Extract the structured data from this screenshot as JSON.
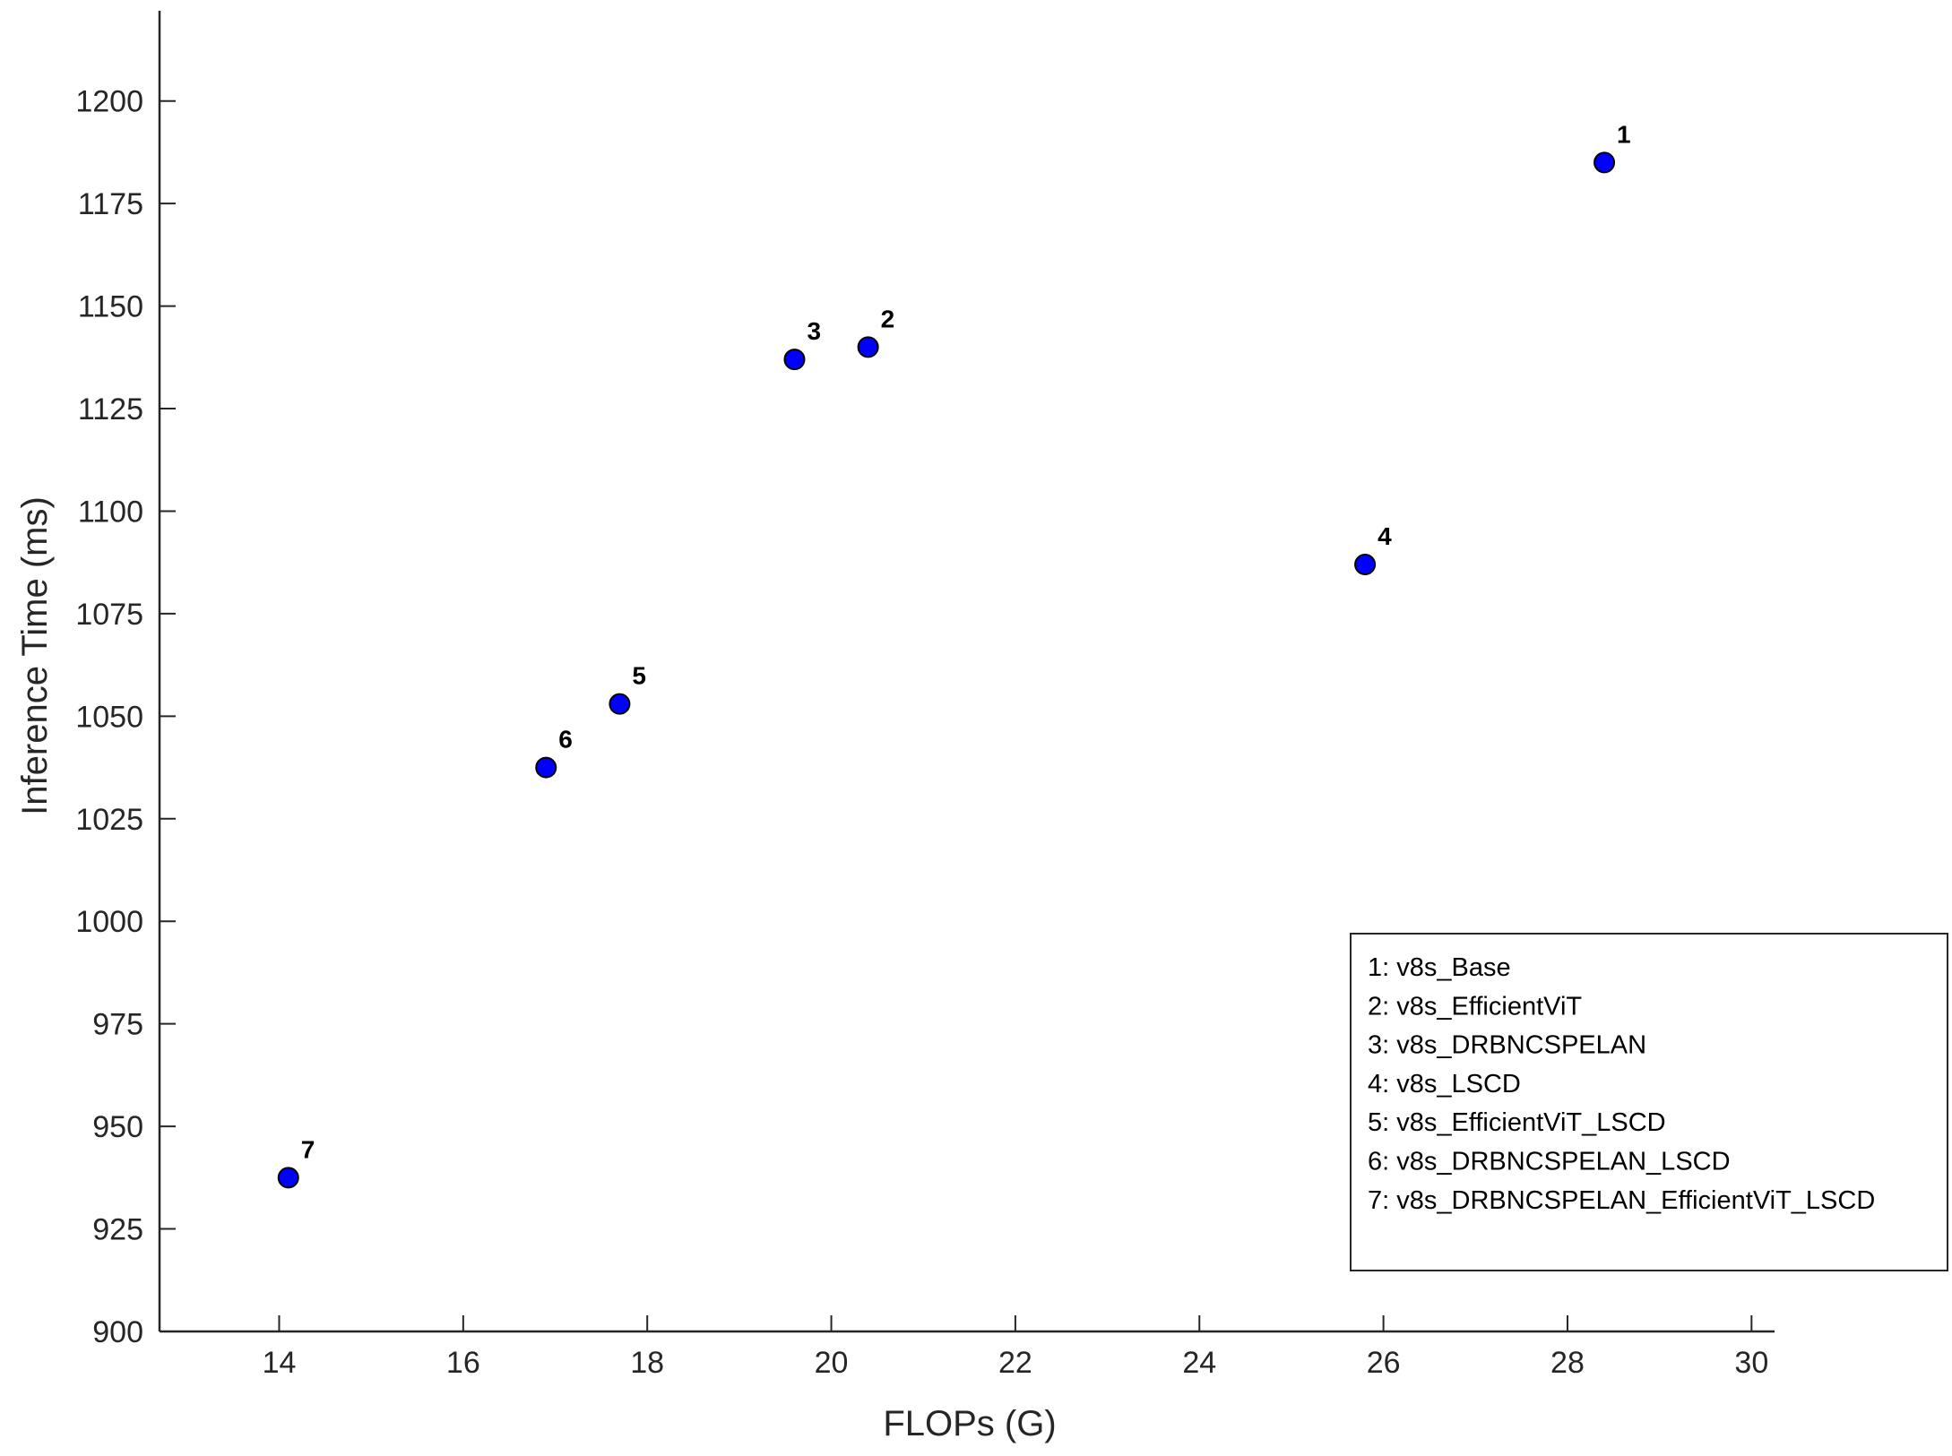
{
  "chart_data": {
    "type": "scatter",
    "title": "",
    "xlabel": "FLOPs (G)",
    "ylabel": "Inference Time (ms)",
    "xlim": [
      12.7,
      30.25
    ],
    "ylim": [
      900,
      1222
    ],
    "xticks": [
      14,
      16,
      18,
      20,
      22,
      24,
      26,
      28,
      30
    ],
    "yticks": [
      900,
      925,
      950,
      975,
      1000,
      1025,
      1050,
      1075,
      1100,
      1125,
      1150,
      1175,
      1200
    ],
    "grid": false,
    "marker_color": "#0000ff",
    "legend_position": "bottom-right",
    "points": [
      {
        "label": "1",
        "x": 28.4,
        "y": 1185
      },
      {
        "label": "2",
        "x": 20.4,
        "y": 1140
      },
      {
        "label": "3",
        "x": 19.6,
        "y": 1137
      },
      {
        "label": "4",
        "x": 25.8,
        "y": 1087
      },
      {
        "label": "5",
        "x": 17.7,
        "y": 1053
      },
      {
        "label": "6",
        "x": 16.9,
        "y": 1037.5
      },
      {
        "label": "7",
        "x": 14.1,
        "y": 937.5
      }
    ],
    "legend": [
      "1: v8s_Base",
      "2: v8s_EfficientViT",
      "3: v8s_DRBNCSPELAN",
      "4: v8s_LSCD",
      "5: v8s_EfficientViT_LSCD",
      "6: v8s_DRBNCSPELAN_LSCD",
      "7: v8s_DRBNCSPELAN_EfficientViT_LSCD"
    ]
  }
}
